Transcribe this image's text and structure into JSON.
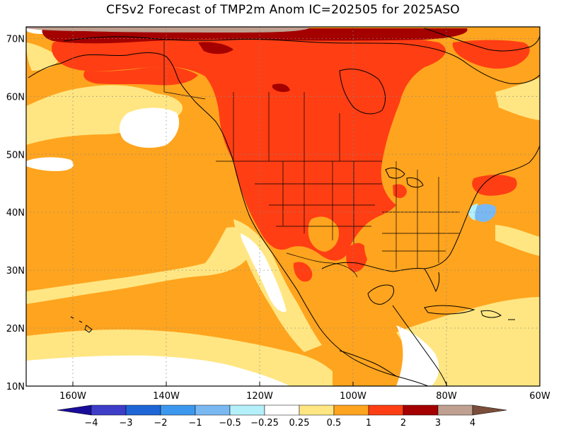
{
  "title": "CFSv2 Forecast of TMP2m Anom IC=202505 for 2025ASO",
  "map": {
    "lat_labels": [
      "70N",
      "60N",
      "50N",
      "40N",
      "30N",
      "20N",
      "10N"
    ],
    "lat_values": [
      70,
      60,
      50,
      40,
      30,
      20,
      10
    ],
    "lon_labels": [
      "160W",
      "140W",
      "120W",
      "100W",
      "80W",
      "60W"
    ],
    "lon_values": [
      -160,
      -140,
      -120,
      -100,
      -80,
      -60
    ],
    "lat_range": [
      10,
      72
    ],
    "lon_range": [
      -170,
      -60
    ],
    "gridlines": "dotted"
  },
  "colorbar": {
    "bounds": [
      "-4",
      "-3",
      "-2",
      "-1",
      "-0.5",
      "-0.25",
      "0.25",
      "0.5",
      "1",
      "2",
      "3",
      "4"
    ],
    "colors": [
      "#1a0c9a",
      "#3d3dc8",
      "#1e66d6",
      "#3c98ee",
      "#7ab8f2",
      "#b4f0fa",
      "#ffffff",
      "#ffe682",
      "#ffa41e",
      "#ff3e14",
      "#a40000",
      "#c0a090",
      "#7a4e3a"
    ]
  },
  "palette": {
    "white": "#ffffff",
    "light_yellow": "#ffe682",
    "orange": "#ffa41e",
    "red_orange": "#ff3e14",
    "dark_red": "#a40000",
    "tan": "#c0a090",
    "light_blue": "#7ab8f2",
    "blue": "#3c98ee"
  }
}
